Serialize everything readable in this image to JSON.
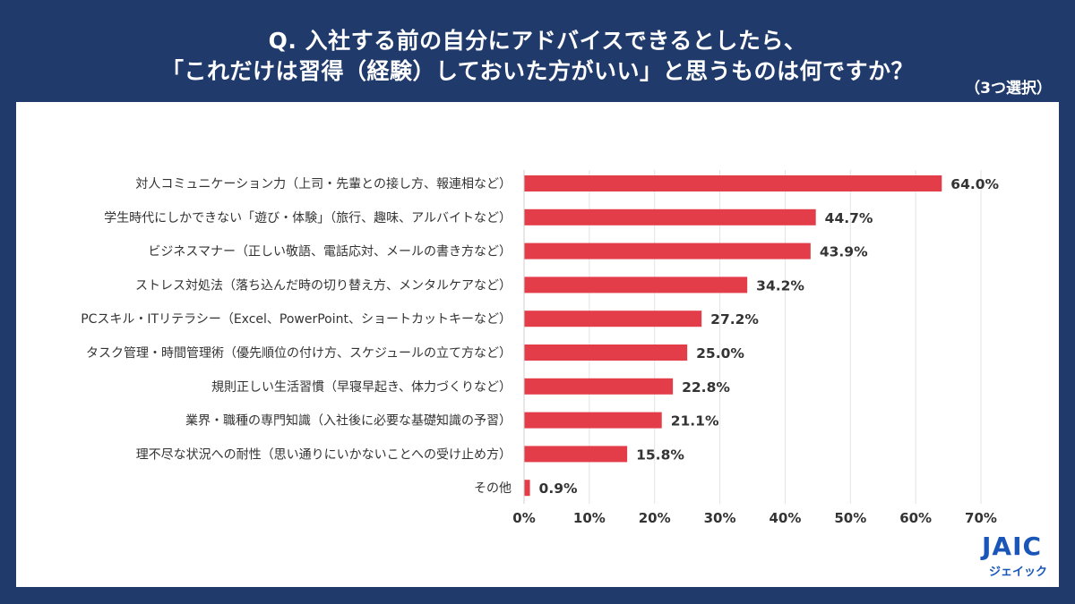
{
  "header": {
    "title_line1": "Q. 入社する前の自分にアドバイスできるとしたら、",
    "title_line2": "「これだけは習得（経験）しておいた方がいい」と思うものは何ですか？",
    "note": "（3つ選択）"
  },
  "colors": {
    "background": "#1f3a6b",
    "bar": "#e23d48",
    "panel": "#ffffff",
    "logo": "#1a56b8"
  },
  "logo": {
    "text": "JAIC",
    "sub": "ジェイック"
  },
  "chart_data": {
    "type": "bar",
    "orientation": "horizontal",
    "title": "Q. 入社する前の自分にアドバイスできるとしたら、「これだけは習得（経験）しておいた方がいい」と思うものは何ですか？",
    "categories": [
      "対人コミュニケーション力（上司・先輩との接し方、報連相など）",
      "学生時代にしかできない「遊び・体験」（旅行、趣味、アルバイトなど）",
      "ビジネスマナー（正しい敬語、電話応対、メールの書き方など）",
      "ストレス対処法（落ち込んだ時の切り替え方、メンタルケアなど）",
      "PCスキル・ITリテラシー（Excel、PowerPoint、ショートカットキーなど）",
      "タスク管理・時間管理術（優先順位の付け方、スケジュールの立て方など）",
      "規則正しい生活習慣（早寝早起き、体力づくりなど）",
      "業界・職種の専門知識（入社後に必要な基礎知識の予習）",
      "理不尽な状況への耐性（思い通りにいかないことへの受け止め方）",
      "その他"
    ],
    "values": [
      64.0,
      44.7,
      43.9,
      34.2,
      27.2,
      25.0,
      22.8,
      21.1,
      15.8,
      0.9
    ],
    "value_labels": [
      "64.0%",
      "44.7%",
      "43.9%",
      "34.2%",
      "27.2%",
      "25.0%",
      "22.8%",
      "21.1%",
      "15.8%",
      "0.9%"
    ],
    "xlim": [
      0,
      70
    ],
    "xticks": [
      "0%",
      "10%",
      "20%",
      "30%",
      "40%",
      "50%",
      "60%",
      "70%"
    ],
    "grid": true
  }
}
